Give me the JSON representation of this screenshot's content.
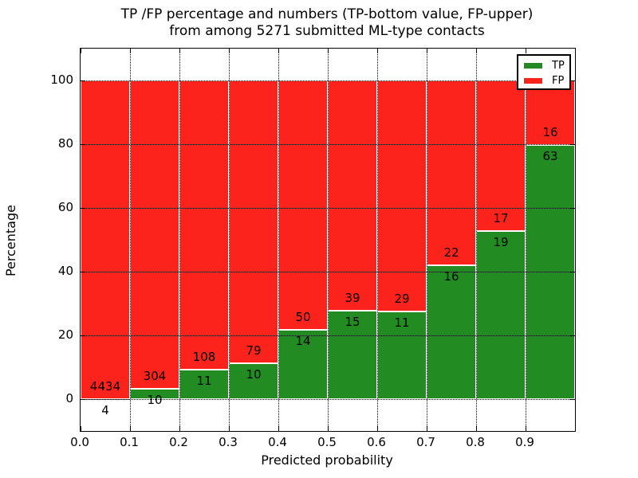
{
  "title": {
    "line1": "TP /FP percentage and numbers (TP-bottom value, FP-upper)",
    "line2": "from among 5271 submitted ML-type contacts"
  },
  "axes": {
    "xlabel": "Predicted probability",
    "ylabel": "Percentage"
  },
  "legend": {
    "position": "upper right",
    "entries": [
      {
        "label": "TP",
        "color": "#228b22"
      },
      {
        "label": "FP",
        "color": "#fb231c"
      }
    ]
  },
  "chart_data": {
    "type": "bar",
    "stacked": true,
    "normalized": "each bin scaled to 100%",
    "title": "TP /FP percentage and numbers (TP-bottom value, FP-upper) from among 5271 submitted ML-type contacts",
    "xlabel": "Predicted probability",
    "ylabel": "Percentage",
    "total_contacts": 5271,
    "bin_edges": [
      0.0,
      0.1,
      0.2,
      0.3,
      0.4,
      0.5,
      0.6,
      0.7,
      0.8,
      0.9,
      1.0
    ],
    "categories": [
      "0.0-0.1",
      "0.1-0.2",
      "0.2-0.3",
      "0.3-0.4",
      "0.4-0.5",
      "0.5-0.6",
      "0.6-0.7",
      "0.7-0.8",
      "0.8-0.9",
      "0.9-1.0"
    ],
    "series": [
      {
        "name": "TP",
        "color": "#228b22",
        "counts": [
          4,
          10,
          11,
          10,
          14,
          15,
          11,
          16,
          19,
          63
        ]
      },
      {
        "name": "FP",
        "color": "#fb231c",
        "counts": [
          4434,
          304,
          108,
          79,
          50,
          39,
          29,
          22,
          17,
          16
        ]
      }
    ],
    "tp_percent": [
      0.09,
      3.18,
      9.24,
      11.24,
      21.88,
      27.78,
      27.5,
      42.11,
      52.78,
      79.75
    ],
    "xticks": [
      "0.0",
      "0.1",
      "0.2",
      "0.3",
      "0.4",
      "0.5",
      "0.6",
      "0.7",
      "0.8",
      "0.9"
    ],
    "yticks": [
      "0",
      "20",
      "40",
      "60",
      "80",
      "100"
    ],
    "xlim": [
      0.0,
      1.0
    ],
    "ylim": [
      -10,
      110
    ],
    "grid": "dotted",
    "bar_edge_color": "#ffffff",
    "legend_position": "upper right"
  }
}
